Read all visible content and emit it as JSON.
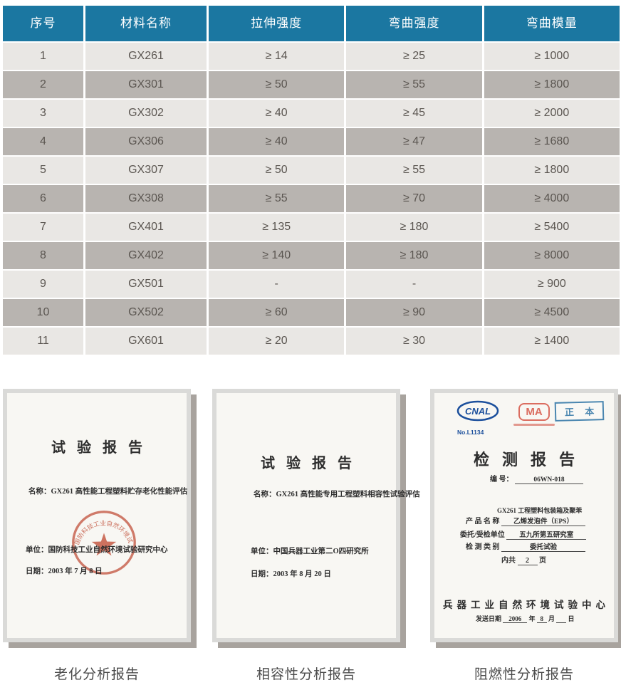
{
  "table": {
    "headers": [
      "序号",
      "材料名称",
      "拉伸强度",
      "弯曲强度",
      "弯曲模量"
    ],
    "rows": [
      [
        "1",
        "GX261",
        "≥ 14",
        "≥ 25",
        "≥ 1000"
      ],
      [
        "2",
        "GX301",
        "≥ 50",
        "≥ 55",
        "≥ 1800"
      ],
      [
        "3",
        "GX302",
        "≥ 40",
        "≥ 45",
        "≥ 2000"
      ],
      [
        "4",
        "GX306",
        "≥ 40",
        "≥ 47",
        "≥ 1680"
      ],
      [
        "5",
        "GX307",
        "≥ 50",
        "≥ 55",
        "≥ 1800"
      ],
      [
        "6",
        "GX308",
        "≥ 55",
        "≥ 70",
        "≥ 4000"
      ],
      [
        "7",
        "GX401",
        "≥ 135",
        "≥ 180",
        "≥ 5400"
      ],
      [
        "8",
        "GX402",
        "≥ 140",
        "≥ 180",
        "≥ 8000"
      ],
      [
        "9",
        "GX501",
        "-",
        "-",
        "≥ 900"
      ],
      [
        "10",
        "GX502",
        "≥ 60",
        "≥ 90",
        "≥ 4500"
      ],
      [
        "11",
        "GX601",
        "≥ 20",
        "≥ 30",
        "≥ 1400"
      ]
    ],
    "colors": {
      "header_bg": "#1b77a1",
      "header_text": "#ffffff",
      "row_light": "#e9e7e4",
      "row_dark": "#b8b4b0",
      "cell_text": "#5b5651"
    }
  },
  "documents": [
    {
      "title": "试验报告",
      "name_label": "名称：",
      "name": "GX261 高性能工程塑料贮存老化性能评估",
      "org_label": "单位：",
      "org": "国防科技工业自然环境试验研究中心",
      "date_label": "日期：",
      "date": "2003 年 7 月 8 日",
      "seal_text": "国防科技工业自然环境试验研究中心",
      "caption": "老化分析报告"
    },
    {
      "title": "试验报告",
      "name_label": "名称：",
      "name": "GX261 高性能专用工程塑料相容性试验评估",
      "org_label": "单位：",
      "org": "中国兵器工业第二O四研究所",
      "date_label": "日期：",
      "date": "2003 年 8 月 20 日",
      "caption": "相容性分析报告"
    },
    {
      "title": "检测报告",
      "cnal_label": "CNAL",
      "cnal_no": "No.L1134",
      "copy_stamp": "正 本",
      "serial_label": "编 号：",
      "serial": "06WN-018",
      "product_line1": "GX261 工程塑料包装箱及聚苯",
      "product_label": "产 品 名 称",
      "product_line2": "乙烯发泡件（EPS）",
      "client_label": "委托/受检单位",
      "client": "五九所第五研究室",
      "category_label": "检 测 类 别",
      "category": "委托试验",
      "pages_prefix": "内共",
      "pages_num": "2",
      "pages_suffix": "页",
      "footer": "兵器工业自然环境试验中心",
      "issue_label": "发送日期",
      "issue_year": "2006",
      "issue_year_suffix": "年",
      "issue_month": "8",
      "issue_month_suffix": "月",
      "issue_day": " ",
      "issue_day_suffix": "日",
      "caption": "阻燃性分析报告"
    }
  ]
}
